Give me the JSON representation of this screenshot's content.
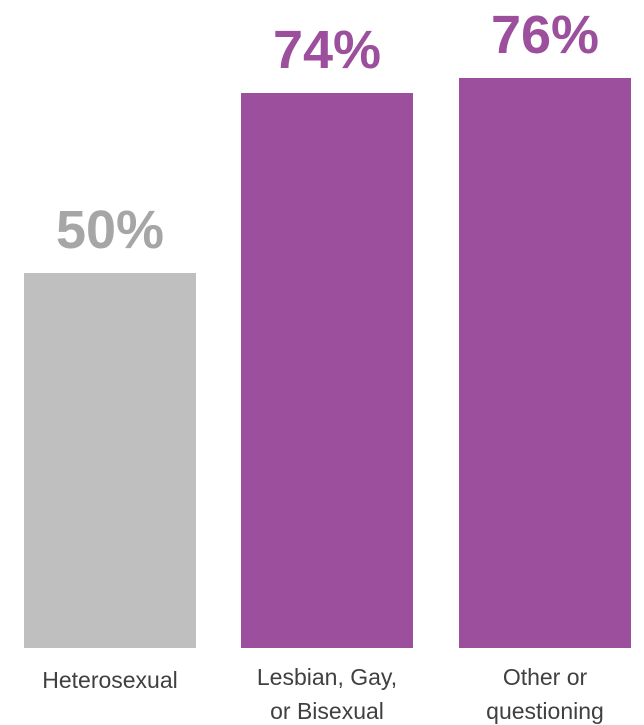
{
  "chart_data": {
    "type": "bar",
    "categories": [
      [
        "Heterosexual"
      ],
      [
        "Lesbian, Gay,",
        "or Bisexual"
      ],
      [
        "Other or",
        "questioning"
      ]
    ],
    "values": [
      50,
      74,
      76
    ],
    "value_labels": [
      "50%",
      "74%",
      "76%"
    ],
    "unit": "%",
    "ylim": [
      0,
      100
    ],
    "grid": false,
    "legend": "none",
    "bar_colors": [
      "#bfbfbf",
      "#9b4f9d",
      "#9b4f9d"
    ],
    "label_colors": [
      "#a6a6a6",
      "#9b4f9d",
      "#9b4f9d"
    ],
    "category_label_color": "#404040"
  }
}
